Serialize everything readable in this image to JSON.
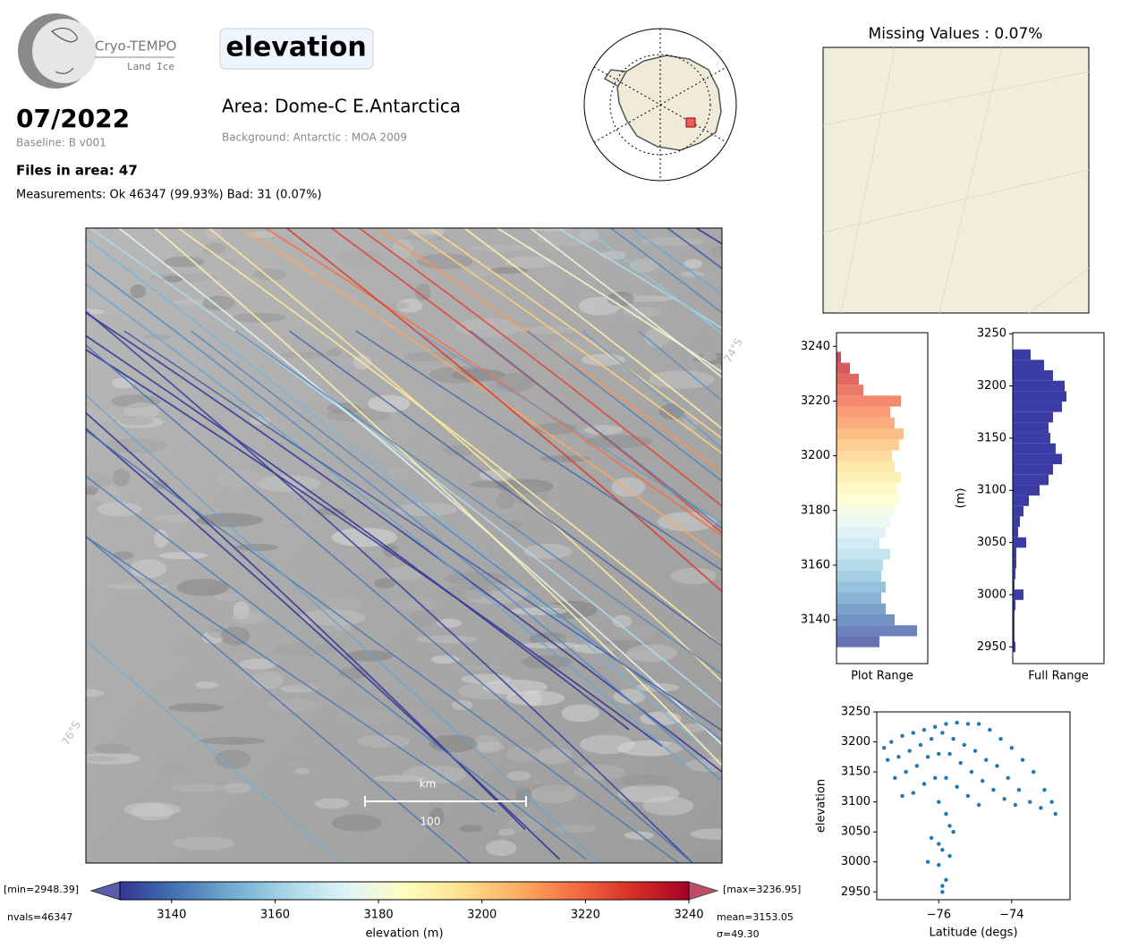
{
  "header": {
    "logo_title": "Cryo-TEMPO",
    "logo_subtitle": "Land Ice",
    "parameter": "elevation",
    "date": "07/2022",
    "baseline": "Baseline: B v001",
    "files": "Files in area: 47",
    "measurements": "Measurements: Ok 46347 (99.93%) Bad: 31 (0.07%)",
    "area": "Area: Dome-C E.Antarctica",
    "background": "Background: Antarctic : MOA 2009"
  },
  "chart_data": [
    {
      "type": "map",
      "annotations": [
        "74°S",
        "76°S"
      ],
      "scale_unit": "km",
      "scale_length": 100
    },
    {
      "type": "colorbar",
      "xlim": [
        3130,
        3240
      ],
      "xticks": [
        3140,
        3160,
        3180,
        3200,
        3220,
        3240
      ],
      "xlabel": "elevation (m)",
      "colormap": [
        "#313695",
        "#4575b4",
        "#74add1",
        "#abd9e9",
        "#e0f3f8",
        "#ffffbf",
        "#fee090",
        "#fdae61",
        "#f46d43",
        "#d73027",
        "#a50026"
      ],
      "min_label": "[min=2948.39]",
      "max_label": "[max=3236.95]",
      "nvals_label": "nvals=46347",
      "mean_label": "mean=3153.05",
      "sigma_label": "σ=49.30"
    },
    {
      "type": "map",
      "title": "Missing Values : 0.07%",
      "color": "#efeedb"
    },
    {
      "type": "histogram",
      "orientation": "horizontal",
      "xlabel": "Plot Range",
      "colormap_fill": true,
      "bins": [
        3130,
        3134,
        3138,
        3142,
        3146,
        3150,
        3154,
        3158,
        3162,
        3166,
        3170,
        3174,
        3178,
        3182,
        3186,
        3190,
        3194,
        3198,
        3202,
        3206,
        3210,
        3214,
        3218,
        3222,
        3226,
        3230,
        3234,
        3238
      ],
      "counts": [
        48,
        90,
        65,
        55,
        50,
        55,
        50,
        52,
        60,
        48,
        55,
        60,
        65,
        70,
        68,
        72,
        65,
        62,
        70,
        75,
        65,
        60,
        72,
        30,
        25,
        15,
        5
      ],
      "xlim": [
        0,
        102
      ],
      "ylim": [
        3124,
        3245
      ],
      "yticks": [
        3140,
        3160,
        3180,
        3200,
        3220,
        3240
      ]
    },
    {
      "type": "histogram",
      "orientation": "horizontal",
      "xlabel": "Full Range",
      "ylabel": "(m)",
      "color": "#3c3ca6",
      "bins": [
        2945,
        2955,
        2965,
        2975,
        2985,
        2995,
        3005,
        3015,
        3025,
        3035,
        3045,
        3055,
        3065,
        3075,
        3085,
        3095,
        3105,
        3115,
        3125,
        3135,
        3145,
        3155,
        3165,
        3175,
        3185,
        3195,
        3205,
        3215,
        3225,
        3235
      ],
      "counts": [
        3,
        2,
        2,
        2,
        3,
        12,
        2,
        3,
        4,
        4,
        15,
        6,
        8,
        12,
        18,
        30,
        40,
        45,
        55,
        48,
        42,
        40,
        45,
        55,
        60,
        58,
        45,
        35,
        20
      ],
      "xlim": [
        0,
        102
      ],
      "ylim": [
        2934,
        3251
      ],
      "yticks": [
        2950,
        3000,
        3050,
        3100,
        3150,
        3200,
        3250
      ]
    },
    {
      "type": "scatter",
      "xlabel": "Latitude (degs)",
      "ylabel": "elevation",
      "color": "#1f77b4",
      "x": [
        -77.5,
        -77.3,
        -77.0,
        -76.7,
        -76.4,
        -76.1,
        -75.8,
        -75.5,
        -75.2,
        -74.9,
        -74.6,
        -74.3,
        -74.0,
        -73.7,
        -73.4,
        -73.1,
        -72.9,
        -72.8,
        -77.4,
        -77.1,
        -76.8,
        -76.5,
        -76.2,
        -75.9,
        -75.6,
        -75.3,
        -75.0,
        -74.7,
        -74.4,
        -74.1,
        -73.8,
        -73.5,
        -73.2,
        -77.2,
        -76.9,
        -76.6,
        -76.3,
        -76.0,
        -75.7,
        -75.4,
        -75.1,
        -74.8,
        -74.5,
        -74.2,
        -73.9,
        -77.0,
        -76.7,
        -76.4,
        -76.1,
        -75.8,
        -75.5,
        -75.2,
        -74.9,
        -76.0,
        -75.8,
        -75.7,
        -75.6,
        -76.2,
        -76.0,
        -75.9,
        -75.7,
        -76.3,
        -76.0,
        -75.8,
        -75.9,
        -75.9
      ],
      "y": [
        3190,
        3200,
        3210,
        3215,
        3220,
        3225,
        3230,
        3232,
        3230,
        3230,
        3220,
        3205,
        3190,
        3170,
        3150,
        3120,
        3100,
        3080,
        3170,
        3175,
        3185,
        3195,
        3205,
        3215,
        3205,
        3195,
        3185,
        3170,
        3160,
        3140,
        3120,
        3100,
        3090,
        3140,
        3150,
        3160,
        3175,
        3180,
        3180,
        3165,
        3150,
        3135,
        3120,
        3105,
        3095,
        3110,
        3115,
        3130,
        3140,
        3140,
        3125,
        3110,
        3095,
        3100,
        3080,
        3060,
        3050,
        3040,
        3030,
        3020,
        3010,
        3000,
        2995,
        2970,
        2960,
        2950
      ],
      "xlim": [
        -77.7,
        -72.4
      ],
      "ylim": [
        2937,
        3250
      ],
      "xticks": [
        {
          "value": -76,
          "label": "−76"
        },
        {
          "value": -74,
          "label": "−74"
        }
      ],
      "yticks": [
        2950,
        3000,
        3050,
        3100,
        3150,
        3200,
        3250
      ]
    }
  ]
}
